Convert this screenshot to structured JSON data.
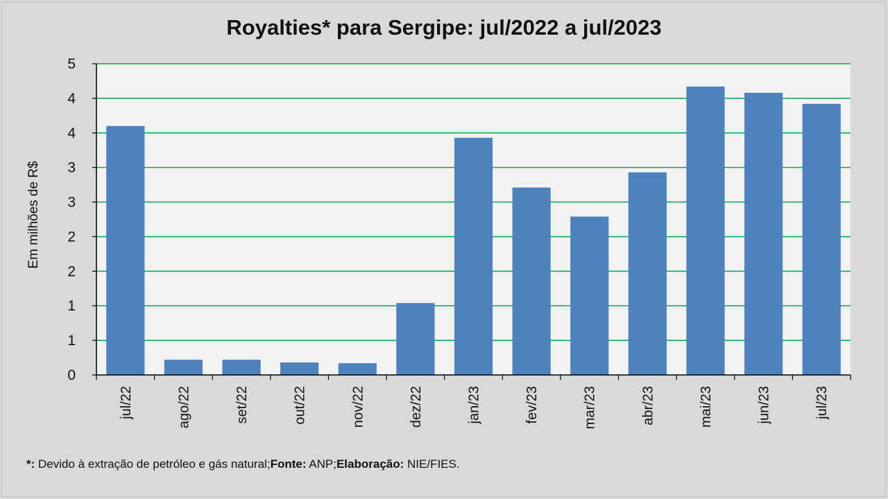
{
  "chart_data": {
    "type": "bar",
    "title": "Royalties* para Sergipe: jul/2022 a jul/2023",
    "xlabel": "",
    "ylabel": "Em milhões de R$",
    "categories": [
      "jul/22",
      "ago/22",
      "set/22",
      "out/22",
      "nov/22",
      "dez/22",
      "jan/23",
      "fev/23",
      "mar/23",
      "abr/23",
      "mai/23",
      "jun/23",
      "jul/23"
    ],
    "values": [
      3.6,
      0.22,
      0.22,
      0.18,
      0.17,
      1.04,
      3.43,
      2.71,
      2.29,
      2.93,
      4.17,
      4.08,
      3.92
    ],
    "ylim": [
      0,
      4.5
    ],
    "ytick_values": [
      0,
      0.5,
      1,
      1.5,
      2,
      2.5,
      3,
      3.5,
      4,
      4.5
    ],
    "ytick_labels": [
      "0",
      "1",
      "1",
      "2",
      "2",
      "3",
      "3",
      "4",
      "4",
      "5"
    ],
    "grid": true,
    "colors": {
      "bar": "#4f81bd",
      "grid": "#00a651",
      "plot_bg": "#f2f2f2"
    }
  },
  "footnote": {
    "star_label": "*:",
    "star_text": " Devido à extração de petróleo e gás natural;",
    "source_label": "Fonte:",
    "source_text": " ANP;",
    "credit_label": "Elaboração:",
    "credit_text": " NIE/FIES."
  }
}
